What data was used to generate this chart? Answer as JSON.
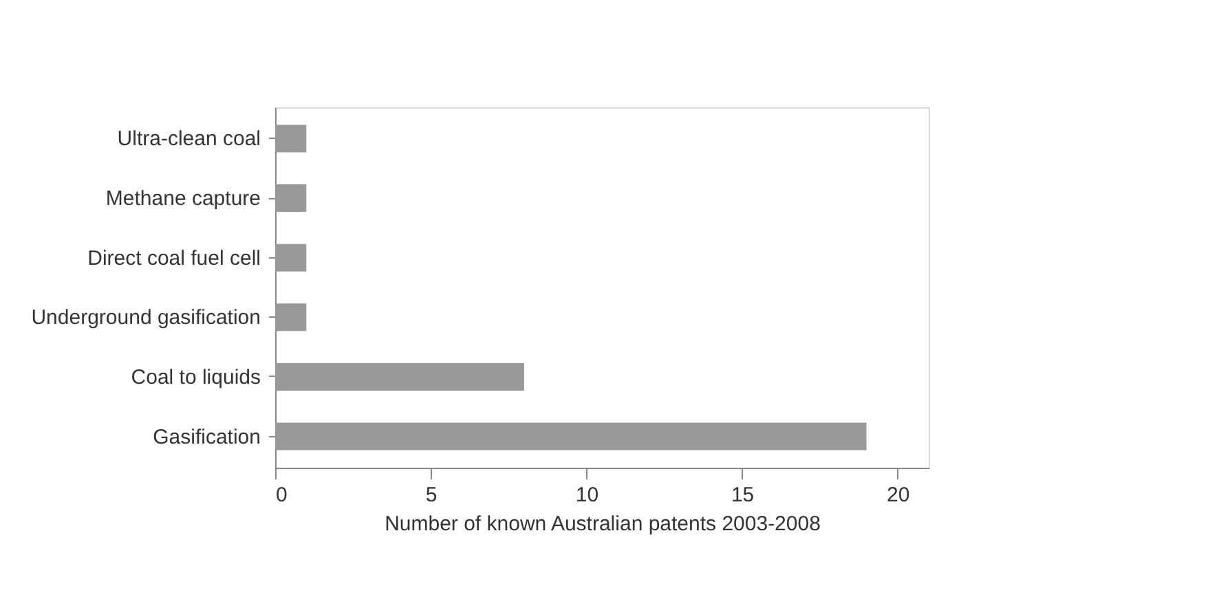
{
  "chart_data": {
    "type": "bar",
    "orientation": "horizontal",
    "categories": [
      "Ultra-clean coal",
      "Methane capture",
      "Direct coal fuel cell",
      "Underground gasification",
      "Coal to liquids",
      "Gasification"
    ],
    "values": [
      1,
      1,
      1,
      1,
      8,
      19
    ],
    "color": "#999999",
    "xlabel": "Number of known Australian patents 2003-2008",
    "xlim": [
      0,
      21
    ],
    "xticks": [
      0,
      5,
      10,
      15,
      20
    ],
    "grid": false
  }
}
